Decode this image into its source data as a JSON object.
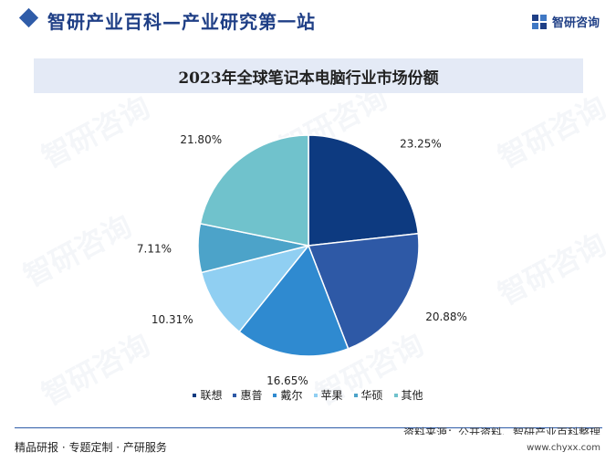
{
  "header": {
    "site_title": "智研产业百科—产业研究第一站",
    "brand_name": "智研咨询",
    "logo_icon": "zhiyan-logo-icon",
    "watermark_text": "智研咨询"
  },
  "colors": {
    "accent": "#2f5ca8",
    "title_band": "#e4eaf6"
  },
  "chart_data": {
    "type": "pie",
    "title": "2023年全球笔记本电脑行业市场份额",
    "series": [
      {
        "name": "联想",
        "value": 23.25,
        "label": "23.25%",
        "color": "#0d3a80"
      },
      {
        "name": "惠普",
        "value": 20.88,
        "label": "20.88%",
        "color": "#2e59a6"
      },
      {
        "name": "戴尔",
        "value": 16.65,
        "label": "16.65%",
        "color": "#2f8ad0"
      },
      {
        "name": "苹果",
        "value": 10.31,
        "label": "10.31%",
        "color": "#90cff2"
      },
      {
        "name": "华硕",
        "value": 7.11,
        "label": "7.11%",
        "color": "#4ca3c9"
      },
      {
        "name": "其他",
        "value": 21.8,
        "label": "21.80%",
        "color": "#70c2cc"
      }
    ],
    "legend_position": "bottom",
    "start_angle": "12 o'clock, clockwise"
  },
  "footer": {
    "source": "资料来源：公开资料、智研产业百科整理",
    "left_text": "精品研报 · 专题定制 · 产研服务",
    "url": "www.chyxx.com"
  }
}
